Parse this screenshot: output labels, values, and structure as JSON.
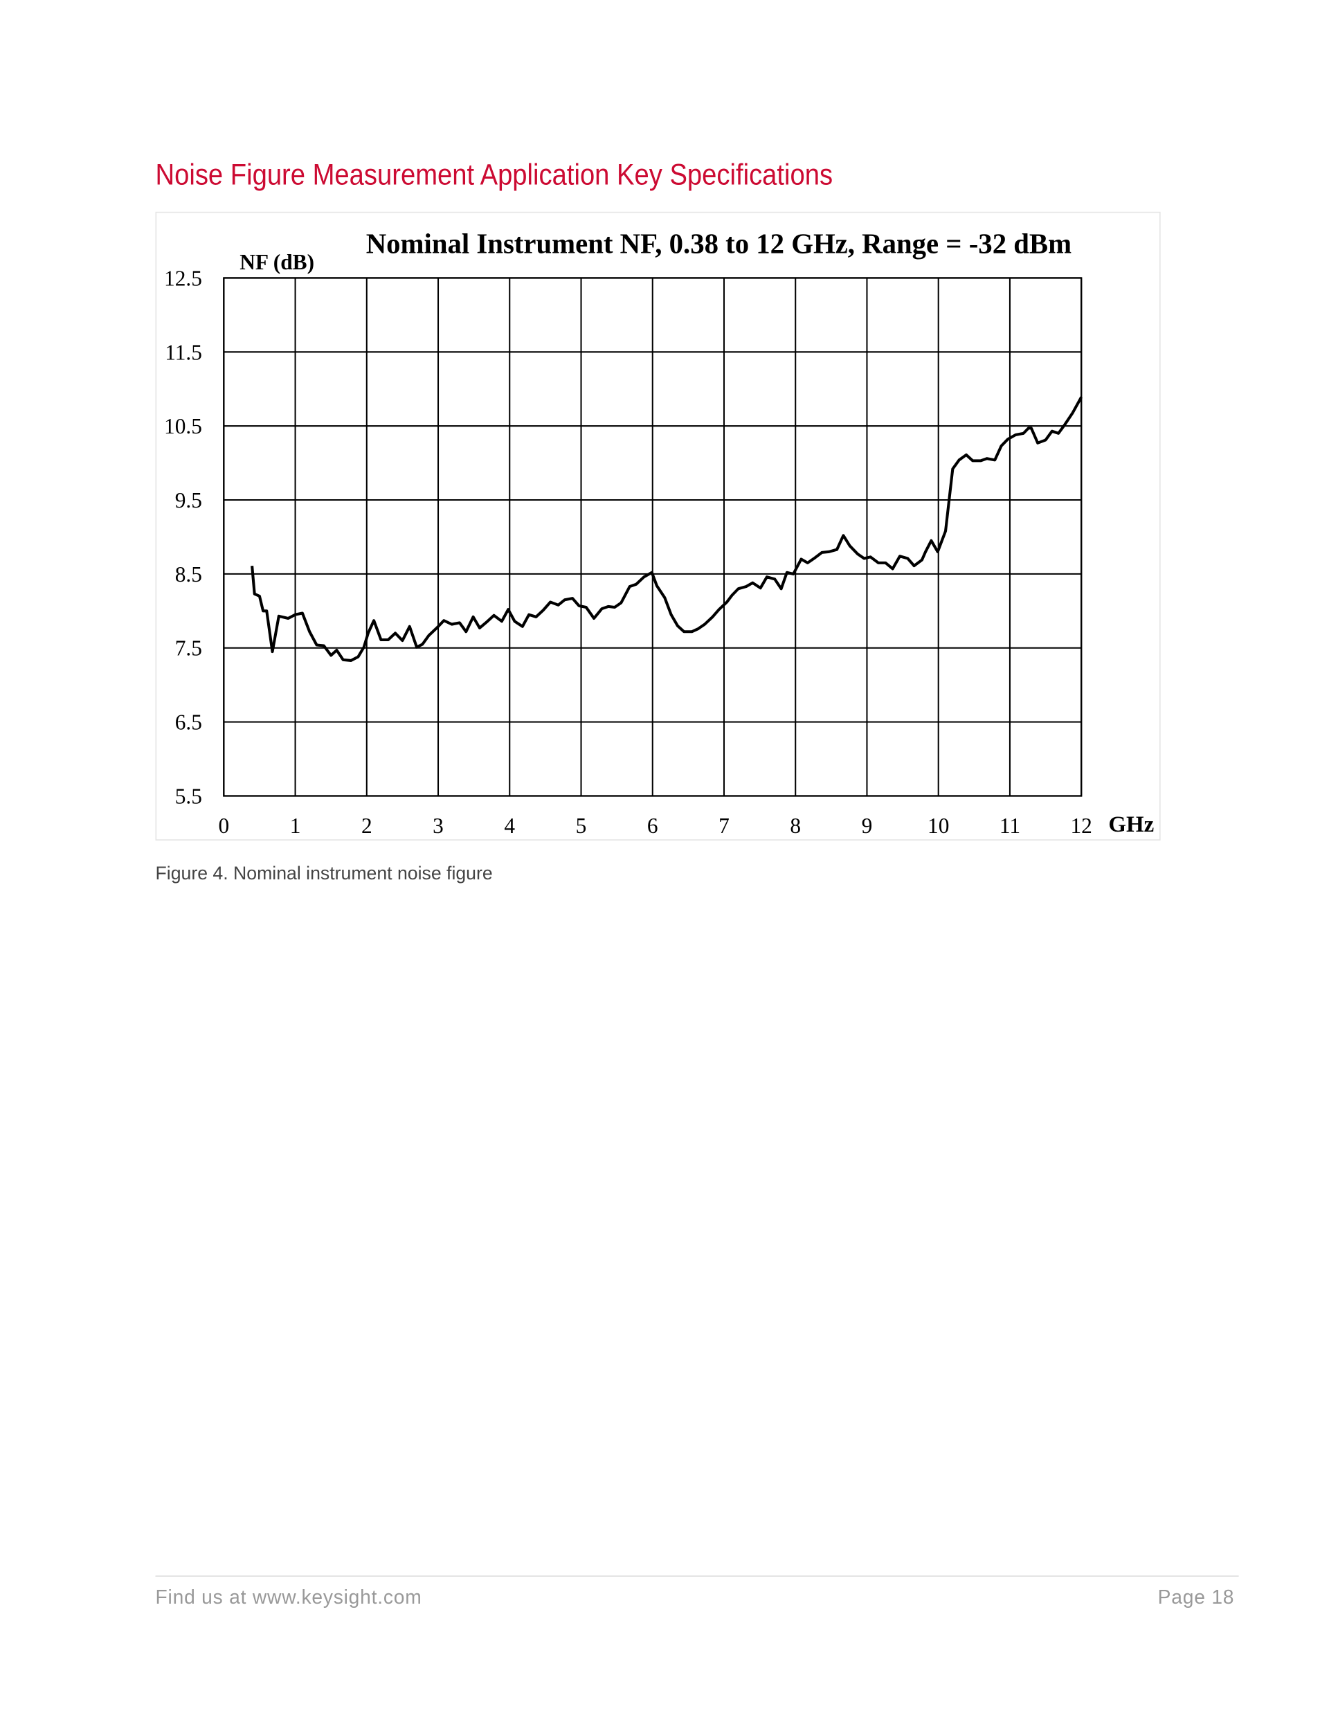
{
  "heading": "Noise Figure Measurement Application Key Specifications",
  "chart_data": {
    "type": "line",
    "title": "Nominal Instrument NF, 0.38 to 12 GHz, Range = -32 dBm",
    "y_label": "NF (dB)",
    "x_label": "GHz",
    "color": "#000000",
    "grid": true,
    "xlim": [
      0,
      12
    ],
    "xticks": [
      0,
      1,
      2,
      3,
      4,
      5,
      6,
      7,
      8,
      9,
      10,
      11,
      12
    ],
    "ylim": [
      5.5,
      12.5
    ],
    "yticks": [
      5.5,
      6.5,
      7.5,
      8.5,
      9.5,
      10.5,
      11.5,
      12.5
    ],
    "x": [
      0.395,
      0.43,
      0.5,
      0.55,
      0.6,
      0.68,
      0.77,
      0.9,
      1.0,
      1.1,
      1.2,
      1.3,
      1.4,
      1.5,
      1.58,
      1.67,
      1.78,
      1.88,
      1.96,
      2.02,
      2.1,
      2.2,
      2.3,
      2.4,
      2.5,
      2.6,
      2.7,
      2.78,
      2.87,
      2.98,
      3.08,
      3.19,
      3.3,
      3.39,
      3.49,
      3.58,
      3.69,
      3.78,
      3.89,
      3.98,
      4.07,
      4.18,
      4.27,
      4.37,
      4.47,
      4.57,
      4.68,
      4.77,
      4.88,
      4.97,
      5.07,
      5.18,
      5.29,
      5.38,
      5.47,
      5.56,
      5.68,
      5.77,
      5.88,
      5.99,
      6.06,
      6.17,
      6.26,
      6.35,
      6.44,
      6.55,
      6.64,
      6.73,
      6.84,
      6.93,
      7.04,
      7.11,
      7.2,
      7.31,
      7.4,
      7.51,
      7.6,
      7.71,
      7.8,
      7.88,
      7.97,
      8.08,
      8.17,
      8.26,
      8.37,
      8.47,
      8.58,
      8.67,
      8.76,
      8.87,
      8.96,
      9.05,
      9.16,
      9.26,
      9.36,
      9.46,
      9.57,
      9.66,
      9.77,
      9.82,
      9.9,
      9.99,
      10.1,
      10.2,
      10.29,
      10.39,
      10.48,
      10.59,
      10.68,
      10.79,
      10.88,
      10.97,
      11.08,
      11.19,
      11.26,
      11.3,
      11.39,
      11.5,
      11.59,
      11.68,
      11.77,
      11.88,
      12.0
    ],
    "values": [
      8.61,
      8.23,
      8.2,
      8.0,
      8.0,
      7.45,
      7.93,
      7.9,
      7.95,
      7.97,
      7.72,
      7.54,
      7.53,
      7.4,
      7.47,
      7.34,
      7.33,
      7.38,
      7.51,
      7.7,
      7.87,
      7.61,
      7.61,
      7.7,
      7.6,
      7.79,
      7.51,
      7.55,
      7.67,
      7.77,
      7.87,
      7.82,
      7.84,
      7.72,
      7.92,
      7.77,
      7.86,
      7.94,
      7.86,
      8.02,
      7.86,
      7.79,
      7.95,
      7.92,
      8.01,
      8.12,
      8.08,
      8.15,
      8.17,
      8.07,
      8.05,
      7.9,
      8.03,
      8.06,
      8.05,
      8.11,
      8.33,
      8.36,
      8.46,
      8.52,
      8.34,
      8.18,
      7.95,
      7.8,
      7.72,
      7.72,
      7.76,
      7.82,
      7.92,
      8.02,
      8.12,
      8.21,
      8.3,
      8.33,
      8.38,
      8.31,
      8.46,
      8.43,
      8.3,
      8.52,
      8.5,
      8.7,
      8.65,
      8.71,
      8.79,
      8.8,
      8.83,
      9.02,
      8.88,
      8.77,
      8.71,
      8.73,
      8.65,
      8.65,
      8.57,
      8.74,
      8.71,
      8.61,
      8.69,
      8.8,
      8.95,
      8.8,
      9.08,
      9.92,
      10.04,
      10.11,
      10.03,
      10.03,
      10.06,
      10.04,
      10.23,
      10.32,
      10.38,
      10.4,
      10.47,
      10.47,
      10.27,
      10.31,
      10.43,
      10.4,
      10.52,
      10.68,
      10.89
    ]
  },
  "caption": "Figure 4. Nominal instrument noise figure",
  "footer": {
    "left": "Find us at www.keysight.com",
    "right": "Page 18"
  }
}
